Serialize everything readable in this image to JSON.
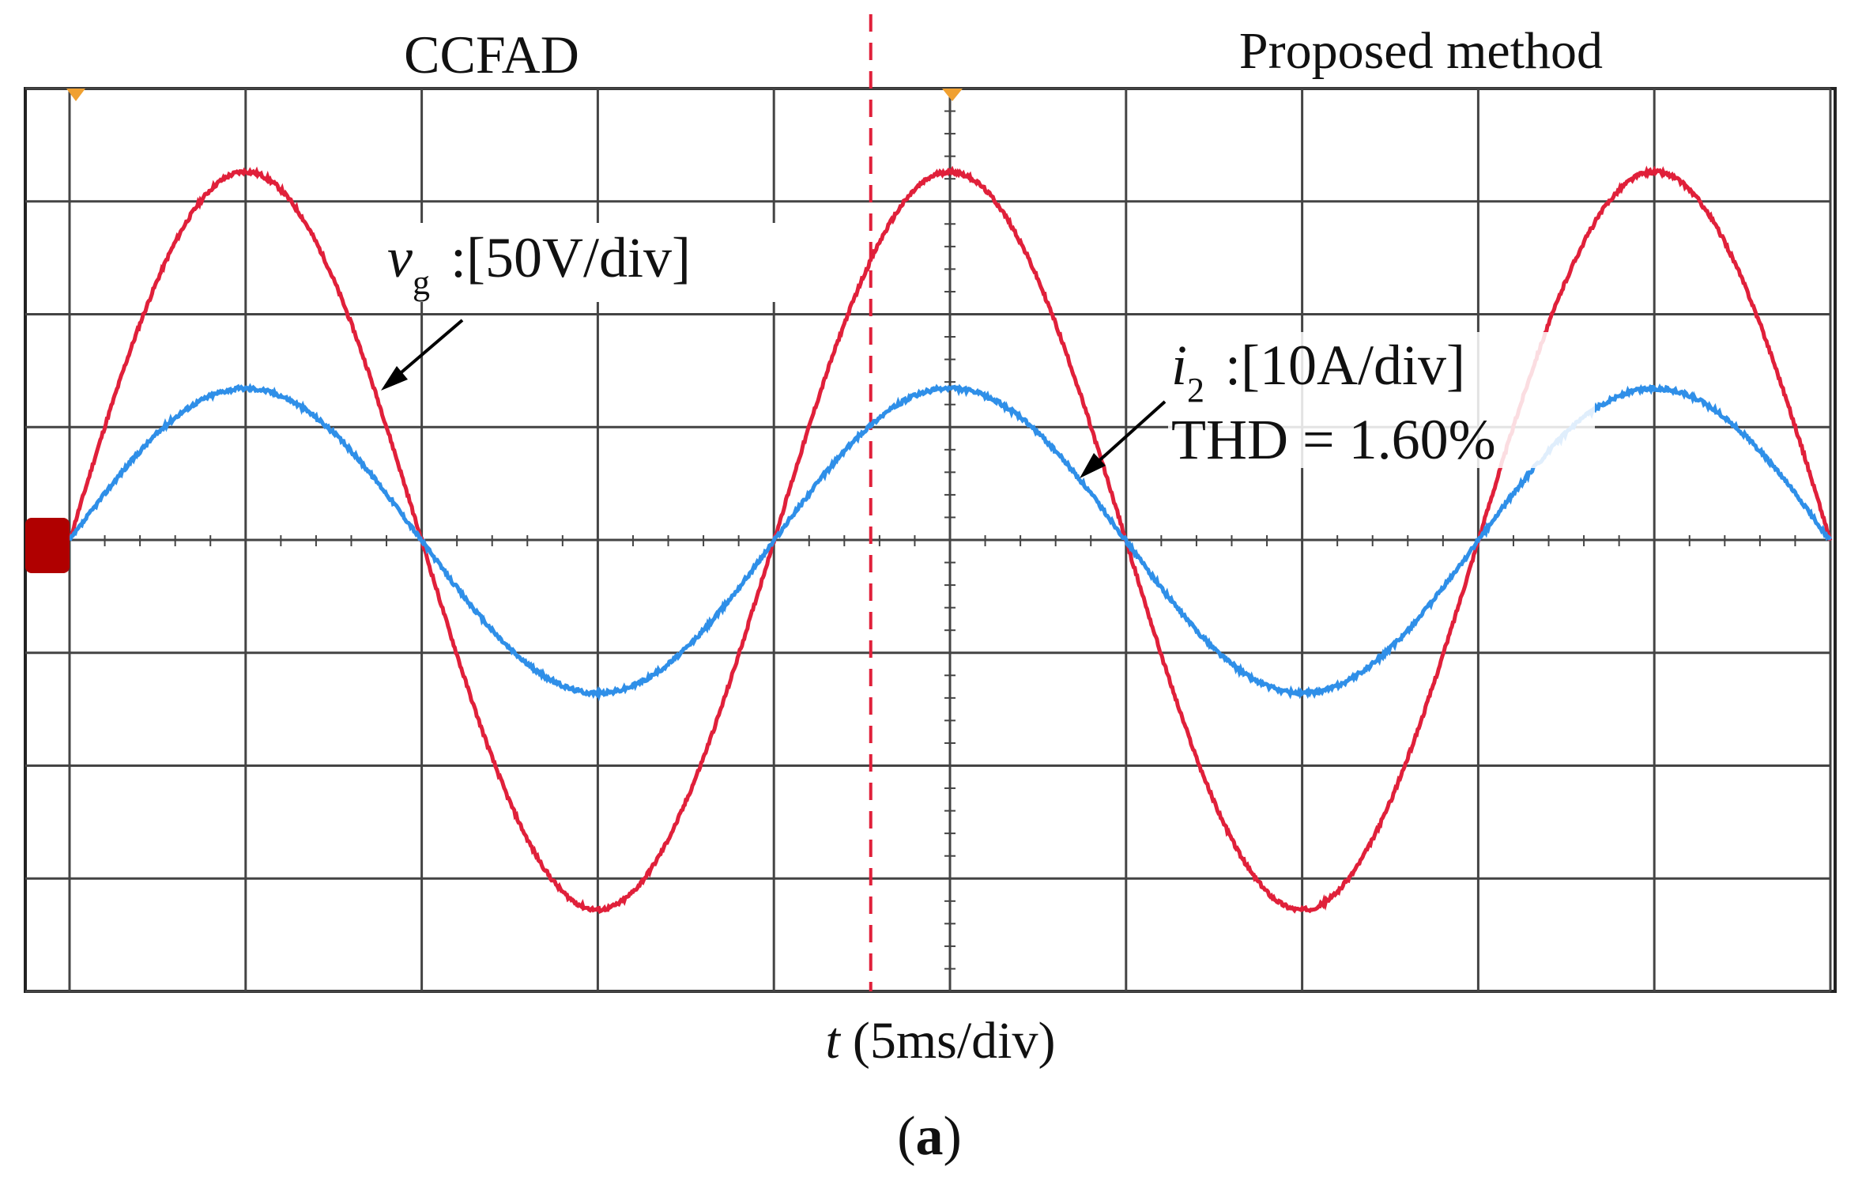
{
  "chart_data": {
    "type": "line",
    "title_left": "CCFAD",
    "title_right": "Proposed method",
    "xlabel_var": "t",
    "xlabel_unit": "(5ms/div)",
    "caption_letter": "a",
    "divisions": {
      "x": 10,
      "y": 8
    },
    "divider_x_div": 4.55,
    "series": [
      {
        "name": "vg",
        "symbol": "v",
        "subscript": "g",
        "scale": ":[50V/div]",
        "color": "#e0203a",
        "amplitude_div": 3.27,
        "period_div": 4.0,
        "phase_div": 0.0
      },
      {
        "name": "i2",
        "symbol": "i",
        "subscript": "2",
        "scale": ":[10A/div]",
        "thd": "THD = 1.60%",
        "color": "#2f8fe8",
        "amplitude_div": 1.35,
        "period_div": 4.0,
        "phase_div": 0.0
      }
    ],
    "colors": {
      "grid": "#444444",
      "divider": "#e0203a",
      "marker": "#b00000",
      "trigger": "#f0a030"
    }
  }
}
